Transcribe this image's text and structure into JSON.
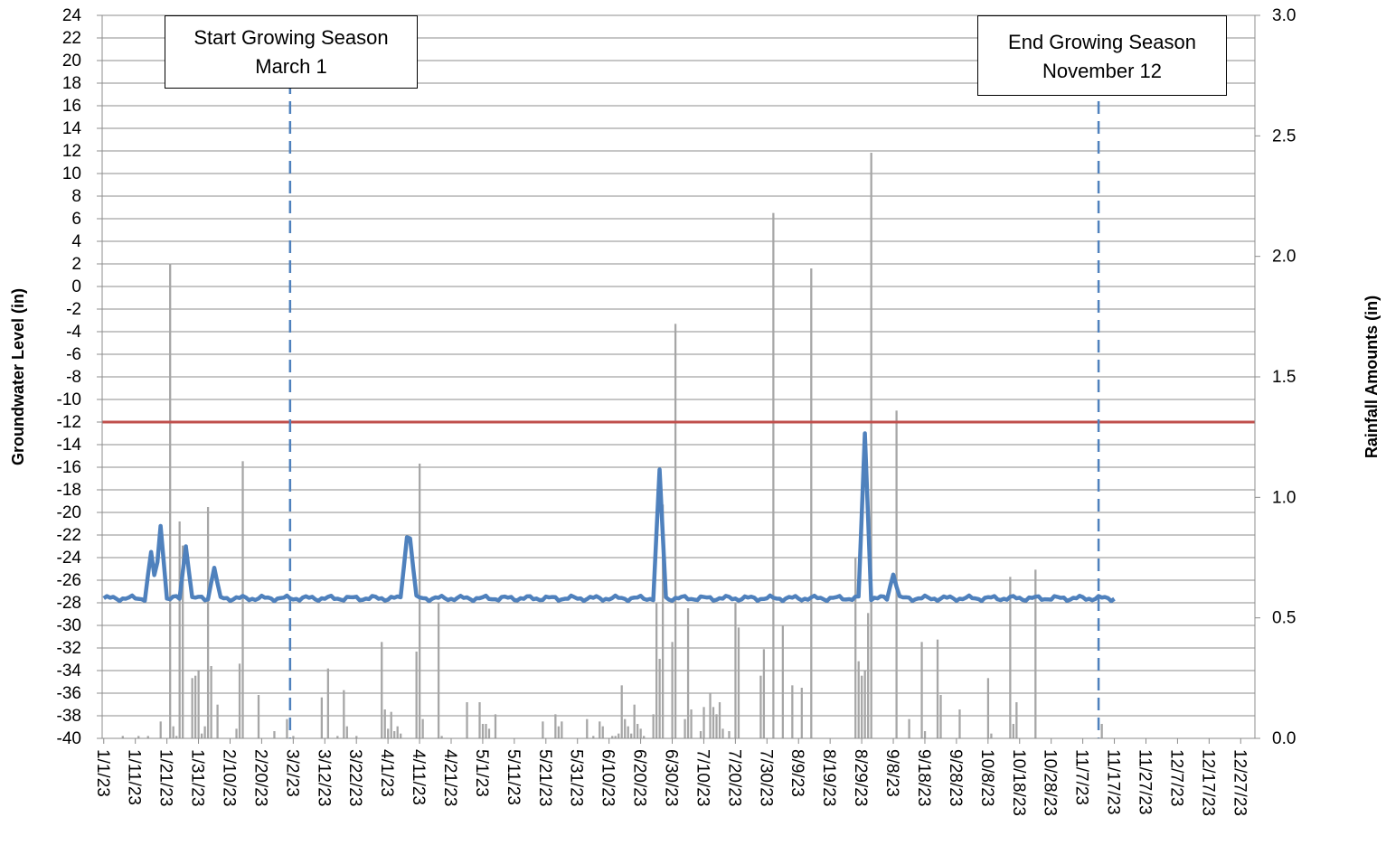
{
  "chart_data": {
    "type": "bar+line",
    "title": "",
    "y_left": {
      "label": "Groundwater Level (in)",
      "ylim": [
        -40,
        24
      ],
      "ticks": [
        24,
        22,
        20,
        18,
        16,
        14,
        12,
        10,
        8,
        6,
        4,
        2,
        0,
        -2,
        -4,
        -6,
        -8,
        -10,
        -12,
        -14,
        -16,
        -18,
        -20,
        -22,
        -24,
        -26,
        -28,
        -30,
        -32,
        -34,
        -36,
        -38,
        -40
      ]
    },
    "y_right": {
      "label": "Rainfall Amounts (in)",
      "ylim": [
        0,
        3.0
      ],
      "ticks": [
        "3.0",
        "2.5",
        "2.0",
        "1.5",
        "1.0",
        "0.5",
        "0.0"
      ]
    },
    "x_axis": {
      "start_date": "2023-01-01",
      "end_date": "2023-12-31",
      "tick_labels": [
        "1/1/23",
        "1/11/23",
        "1/21/23",
        "1/31/23",
        "2/10/23",
        "2/20/23",
        "3/2/23",
        "3/12/23",
        "3/22/23",
        "4/1/23",
        "4/11/23",
        "4/21/23",
        "5/1/23",
        "5/11/23",
        "5/21/23",
        "5/31/23",
        "6/10/23",
        "6/20/23",
        "6/30/23",
        "7/10/23",
        "7/20/23",
        "7/30/23",
        "8/9/23",
        "8/19/23",
        "8/29/23",
        "9/8/23",
        "9/18/23",
        "9/28/23",
        "10/8/23",
        "10/18/23",
        "10/28/23",
        "11/7/23",
        "11/17/23",
        "11/27/23",
        "12/7/23",
        "12/17/23",
        "12/27/23"
      ]
    },
    "threshold_line": {
      "value": -12,
      "color": "#c0504d"
    },
    "markers": [
      {
        "date": "2023-03-01",
        "lines": [
          "Start Growing Season",
          "March 1"
        ],
        "color": "#4f81bd"
      },
      {
        "date": "2023-11-12",
        "lines": [
          "End Growing Season",
          "November 12"
        ],
        "color": "#4f81bd"
      }
    ],
    "groundwater_series": {
      "color": "#4f81bd",
      "baseline": -27.6,
      "end_date": "2023-11-17",
      "peaks": [
        {
          "date": "2023-01-16",
          "value": -23.5
        },
        {
          "date": "2023-01-19",
          "value": -21.2
        },
        {
          "date": "2023-01-27",
          "value": -23.0
        },
        {
          "date": "2023-02-05",
          "value": -24.9
        },
        {
          "date": "2023-04-07",
          "value": -22.2
        },
        {
          "date": "2023-04-08",
          "value": -22.3
        },
        {
          "date": "2023-06-26",
          "value": -16.2
        },
        {
          "date": "2023-08-30",
          "value": -13.0
        },
        {
          "date": "2023-09-08",
          "value": -25.5
        }
      ]
    },
    "rainfall_series": {
      "color": "#a6a6a6",
      "bars": [
        [
          "2023-01-07",
          0.01
        ],
        [
          "2023-01-12",
          0.01
        ],
        [
          "2023-01-15",
          0.01
        ],
        [
          "2023-01-19",
          0.07
        ],
        [
          "2023-01-22",
          1.97
        ],
        [
          "2023-01-23",
          0.05
        ],
        [
          "2023-01-24",
          0.01
        ],
        [
          "2023-01-25",
          0.9
        ],
        [
          "2023-01-26",
          0.8
        ],
        [
          "2023-01-29",
          0.25
        ],
        [
          "2023-01-30",
          0.26
        ],
        [
          "2023-01-31",
          0.28
        ],
        [
          "2023-02-01",
          0.02
        ],
        [
          "2023-02-02",
          0.05
        ],
        [
          "2023-02-03",
          0.96
        ],
        [
          "2023-02-04",
          0.3
        ],
        [
          "2023-02-06",
          0.14
        ],
        [
          "2023-02-12",
          0.04
        ],
        [
          "2023-02-13",
          0.31
        ],
        [
          "2023-02-14",
          1.15
        ],
        [
          "2023-02-19",
          0.18
        ],
        [
          "2023-02-24",
          0.03
        ],
        [
          "2023-02-28",
          0.08
        ],
        [
          "2023-03-02",
          0.01
        ],
        [
          "2023-03-11",
          0.17
        ],
        [
          "2023-03-13",
          0.29
        ],
        [
          "2023-03-16",
          0.01
        ],
        [
          "2023-03-18",
          0.2
        ],
        [
          "2023-03-19",
          0.05
        ],
        [
          "2023-03-22",
          0.01
        ],
        [
          "2023-03-30",
          0.4
        ],
        [
          "2023-03-31",
          0.12
        ],
        [
          "2023-04-01",
          0.04
        ],
        [
          "2023-04-02",
          0.11
        ],
        [
          "2023-04-03",
          0.03
        ],
        [
          "2023-04-04",
          0.05
        ],
        [
          "2023-04-05",
          0.02
        ],
        [
          "2023-04-10",
          0.36
        ],
        [
          "2023-04-11",
          1.14
        ],
        [
          "2023-04-12",
          0.08
        ],
        [
          "2023-04-17",
          0.56
        ],
        [
          "2023-04-18",
          0.01
        ],
        [
          "2023-04-26",
          0.15
        ],
        [
          "2023-04-30",
          0.15
        ],
        [
          "2023-05-01",
          0.06
        ],
        [
          "2023-05-02",
          0.06
        ],
        [
          "2023-05-03",
          0.04
        ],
        [
          "2023-05-05",
          0.1
        ],
        [
          "2023-05-20",
          0.07
        ],
        [
          "2023-05-24",
          0.1
        ],
        [
          "2023-05-25",
          0.05
        ],
        [
          "2023-05-26",
          0.07
        ],
        [
          "2023-06-03",
          0.08
        ],
        [
          "2023-06-05",
          0.01
        ],
        [
          "2023-06-07",
          0.07
        ],
        [
          "2023-06-08",
          0.05
        ],
        [
          "2023-06-11",
          0.01
        ],
        [
          "2023-06-12",
          0.01
        ],
        [
          "2023-06-13",
          0.02
        ],
        [
          "2023-06-14",
          0.22
        ],
        [
          "2023-06-15",
          0.08
        ],
        [
          "2023-06-16",
          0.05
        ],
        [
          "2023-06-17",
          0.02
        ],
        [
          "2023-06-18",
          0.14
        ],
        [
          "2023-06-19",
          0.06
        ],
        [
          "2023-06-20",
          0.04
        ],
        [
          "2023-06-21",
          0.01
        ],
        [
          "2023-06-24",
          0.1
        ],
        [
          "2023-06-25",
          0.56
        ],
        [
          "2023-06-26",
          0.33
        ],
        [
          "2023-06-27",
          0.97
        ],
        [
          "2023-06-30",
          0.4
        ],
        [
          "2023-07-01",
          1.72
        ],
        [
          "2023-07-04",
          0.08
        ],
        [
          "2023-07-05",
          0.54
        ],
        [
          "2023-07-06",
          0.12
        ],
        [
          "2023-07-09",
          0.03
        ],
        [
          "2023-07-10",
          0.13
        ],
        [
          "2023-07-12",
          0.19
        ],
        [
          "2023-07-13",
          0.13
        ],
        [
          "2023-07-14",
          0.1
        ],
        [
          "2023-07-15",
          0.15
        ],
        [
          "2023-07-16",
          0.04
        ],
        [
          "2023-07-18",
          0.03
        ],
        [
          "2023-07-20",
          0.56
        ],
        [
          "2023-07-21",
          0.46
        ],
        [
          "2023-07-28",
          0.26
        ],
        [
          "2023-07-29",
          0.37
        ],
        [
          "2023-08-01",
          2.18
        ],
        [
          "2023-08-04",
          0.47
        ],
        [
          "2023-08-07",
          0.22
        ],
        [
          "2023-08-10",
          0.21
        ],
        [
          "2023-08-13",
          1.95
        ],
        [
          "2023-08-27",
          0.75
        ],
        [
          "2023-08-28",
          0.32
        ],
        [
          "2023-08-29",
          0.26
        ],
        [
          "2023-08-30",
          0.28
        ],
        [
          "2023-08-31",
          0.52
        ],
        [
          "2023-09-01",
          2.43
        ],
        [
          "2023-09-09",
          1.36
        ],
        [
          "2023-09-13",
          0.08
        ],
        [
          "2023-09-17",
          0.4
        ],
        [
          "2023-09-18",
          0.03
        ],
        [
          "2023-09-22",
          0.41
        ],
        [
          "2023-09-23",
          0.18
        ],
        [
          "2023-09-29",
          0.12
        ],
        [
          "2023-10-08",
          0.25
        ],
        [
          "2023-10-09",
          0.02
        ],
        [
          "2023-10-15",
          0.67
        ],
        [
          "2023-10-16",
          0.06
        ],
        [
          "2023-10-17",
          0.15
        ],
        [
          "2023-10-23",
          0.7
        ],
        [
          "2023-11-13",
          0.06
        ]
      ]
    },
    "grid": true,
    "legend": "none"
  }
}
